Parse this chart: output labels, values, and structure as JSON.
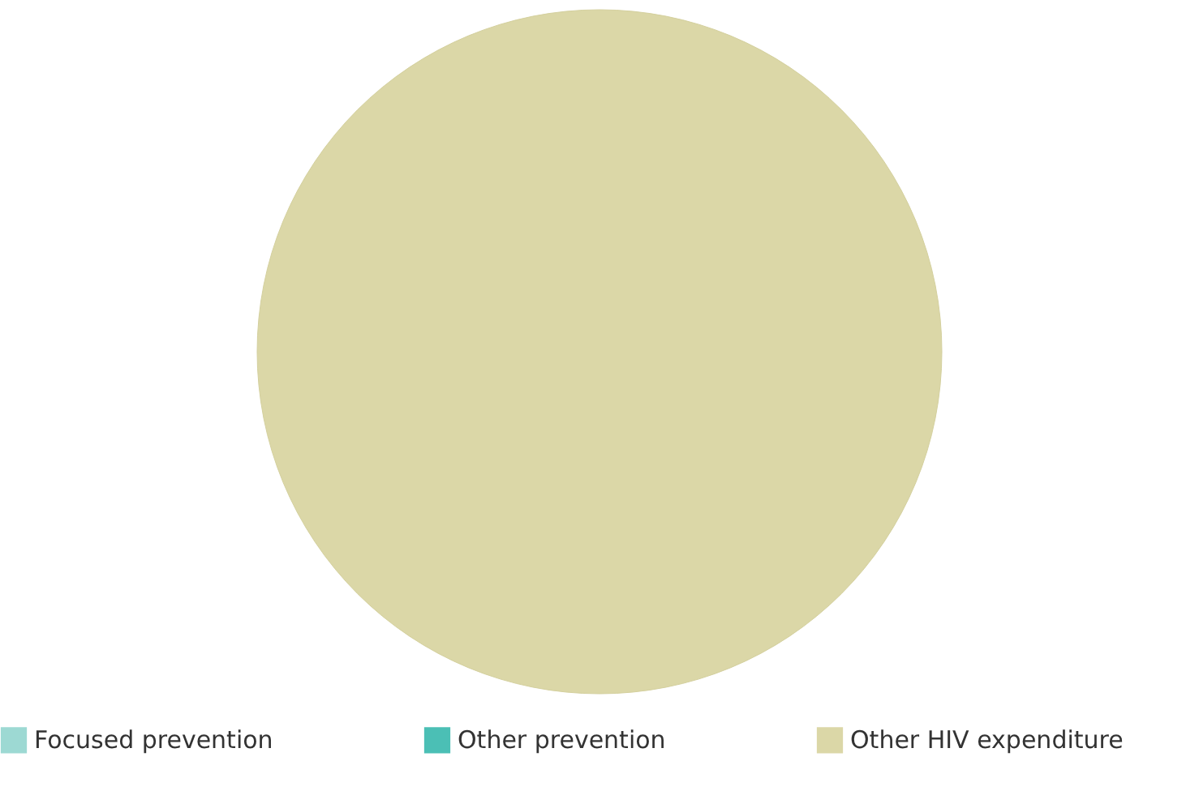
{
  "chart_data": {
    "type": "pie",
    "categories": [
      "Focused prevention",
      "Other prevention",
      "Other HIV expenditure"
    ],
    "values": [
      0,
      0,
      100
    ],
    "colors": [
      "#9dd9d3",
      "#4bbfb5",
      "#dbd7a7"
    ],
    "legend": "bottom"
  }
}
